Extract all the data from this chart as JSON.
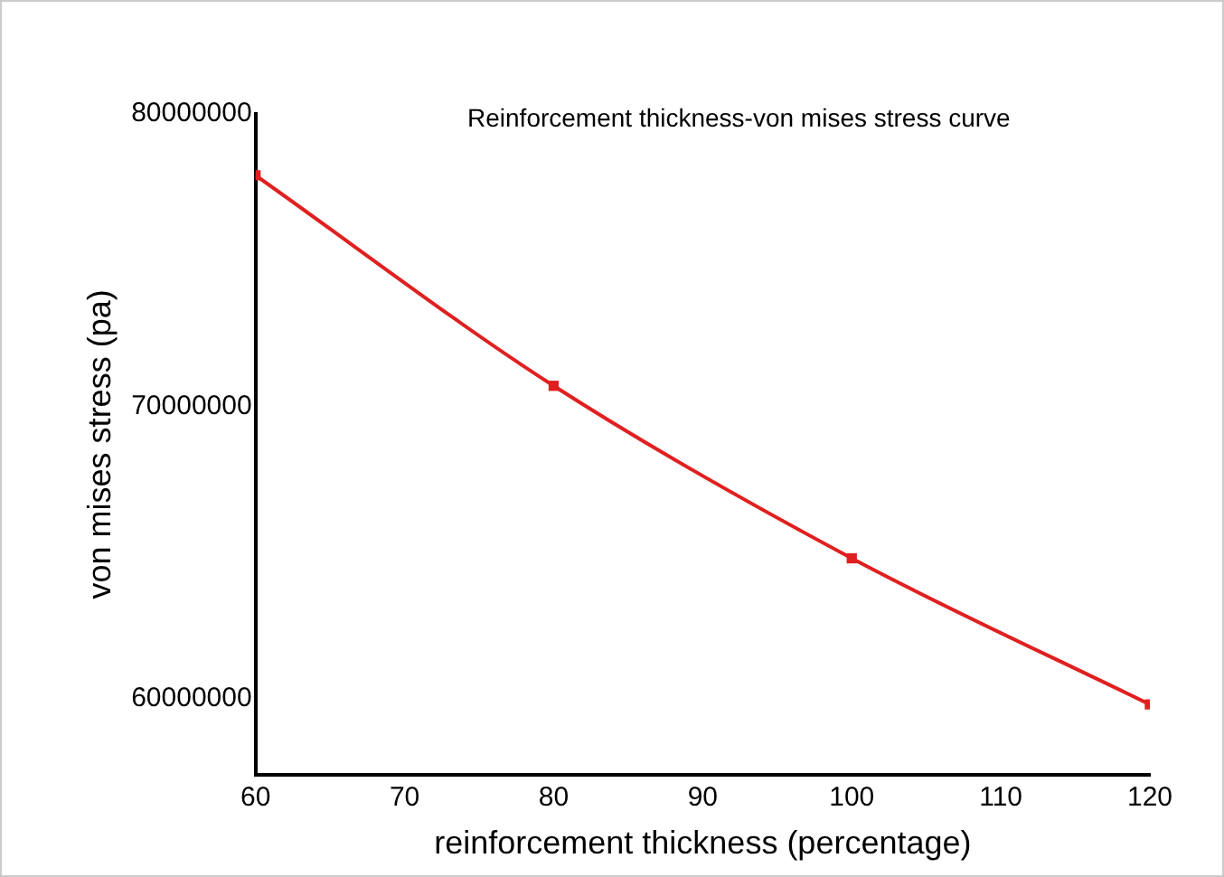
{
  "chart_data": {
    "type": "line",
    "title": "Reinforcement thickness-von mises stress curve",
    "xlabel": "reinforcement thickness (percentage)",
    "ylabel": "von mises stress (pa)",
    "x": [
      60,
      80,
      100,
      120
    ],
    "series": [
      {
        "color": "#e02020",
        "values": [
          77900000,
          70700000,
          64800000,
          59800000
        ]
      }
    ],
    "xlim": [
      60,
      120
    ],
    "xticks": [
      60,
      70,
      80,
      90,
      100,
      110,
      120
    ],
    "ylim": [
      57400000,
      80000000
    ],
    "yticks": [
      60000000,
      70000000,
      80000000
    ],
    "grid": false,
    "legend": false,
    "marker": "square",
    "line_style": "solid"
  }
}
